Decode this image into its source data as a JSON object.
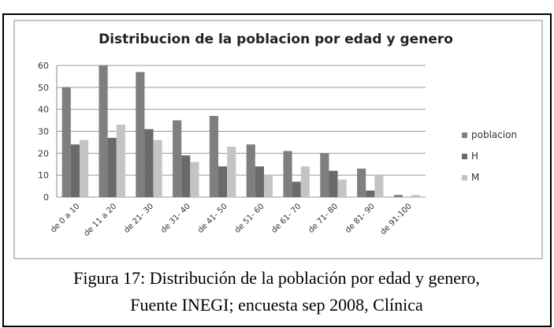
{
  "chart_data": {
    "type": "bar",
    "title": "Distribucion de la poblacion por edad y genero",
    "categories": [
      "de 0 a 10",
      "de 11 a 20",
      "de 21- 30",
      "de 31- 40",
      "de 41- 50",
      "de 51- 60",
      "de 61- 70",
      "de 71- 80",
      "de 81- 90",
      "de 91-100"
    ],
    "series": [
      {
        "name": "poblacion",
        "color": "#7f7f7f",
        "values": [
          50,
          60,
          57,
          35,
          37,
          24,
          21,
          20,
          13,
          1
        ]
      },
      {
        "name": "H",
        "color": "#6a6a6a",
        "values": [
          24,
          27,
          31,
          19,
          14,
          14,
          7,
          12,
          3,
          0
        ]
      },
      {
        "name": "M",
        "color": "#c4c4c4",
        "values": [
          26,
          33,
          26,
          16,
          23,
          10,
          14,
          8,
          10,
          1
        ]
      }
    ],
    "ylim": [
      0,
      60
    ],
    "yticks": [
      0,
      10,
      20,
      30,
      40,
      50,
      60
    ],
    "grid": true,
    "legend": "right"
  },
  "caption": [
    "Figura 17: Distribución de la población por edad y genero,",
    "Fuente INEGI; encuesta sep 2008, Clínica"
  ]
}
